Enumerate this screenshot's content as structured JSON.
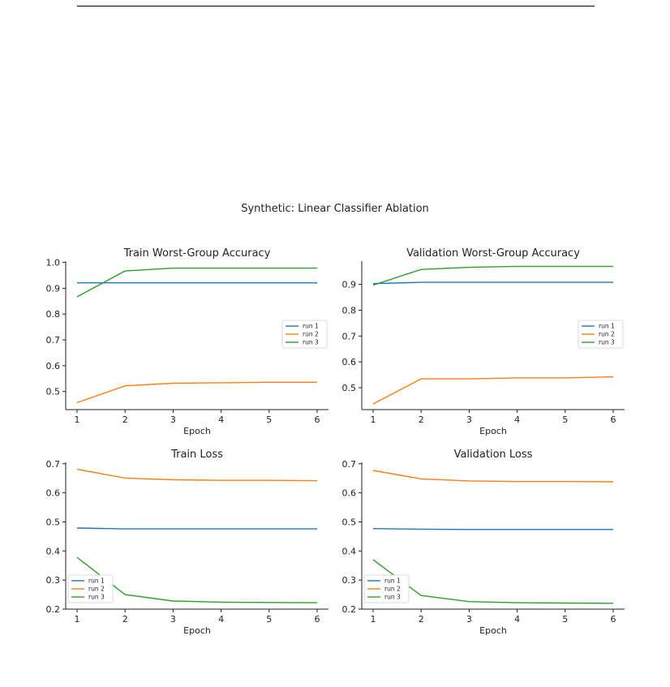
{
  "figure": {
    "title": "Synthetic: Linear Classifier Ablation"
  },
  "chart_data": [
    {
      "type": "line",
      "title": "Train Worst-Group Accuracy",
      "xlabel": "Epoch",
      "ylabel": "",
      "x": [
        1,
        2,
        3,
        4,
        5,
        6
      ],
      "xticks": [
        1,
        2,
        3,
        4,
        5,
        6
      ],
      "yticks": [
        0.5,
        0.6,
        0.7,
        0.8,
        0.9,
        1.0
      ],
      "ytick_labels": [
        "0.5",
        "0.6",
        "0.7",
        "0.8",
        "0.9",
        "1.0"
      ],
      "ylim": [
        0.43,
        1.005
      ],
      "legend": "center-right",
      "grid": false,
      "series": [
        {
          "name": "run 1",
          "color": "#1f77b4",
          "values": [
            0.921,
            0.921,
            0.921,
            0.921,
            0.921,
            0.921
          ]
        },
        {
          "name": "run 2",
          "color": "#ff7f0e",
          "values": [
            0.457,
            0.522,
            0.532,
            0.534,
            0.536,
            0.536
          ]
        },
        {
          "name": "run 3",
          "color": "#2ca02c",
          "values": [
            0.867,
            0.967,
            0.978,
            0.978,
            0.978,
            0.978
          ]
        }
      ]
    },
    {
      "type": "line",
      "title": "Validation Worst-Group Accuracy",
      "xlabel": "Epoch",
      "ylabel": "",
      "x": [
        1,
        2,
        3,
        4,
        5,
        6
      ],
      "xticks": [
        1,
        2,
        3,
        4,
        5,
        6
      ],
      "yticks": [
        0.5,
        0.6,
        0.7,
        0.8,
        0.9
      ],
      "ytick_labels": [
        "0.5",
        "0.6",
        "0.7",
        "0.8",
        "0.9"
      ],
      "ylim": [
        0.415,
        0.99
      ],
      "legend": "center-right",
      "grid": false,
      "series": [
        {
          "name": "run 1",
          "color": "#1f77b4",
          "values": [
            0.903,
            0.908,
            0.908,
            0.908,
            0.908,
            0.908
          ]
        },
        {
          "name": "run 2",
          "color": "#ff7f0e",
          "values": [
            0.437,
            0.534,
            0.534,
            0.538,
            0.538,
            0.542
          ]
        },
        {
          "name": "run 3",
          "color": "#2ca02c",
          "values": [
            0.897,
            0.958,
            0.966,
            0.97,
            0.97,
            0.97
          ]
        }
      ]
    },
    {
      "type": "line",
      "title": "Train Loss",
      "xlabel": "Epoch",
      "ylabel": "",
      "x": [
        1,
        2,
        3,
        4,
        5,
        6
      ],
      "xticks": [
        1,
        2,
        3,
        4,
        5,
        6
      ],
      "yticks": [
        0.2,
        0.3,
        0.4,
        0.5,
        0.6,
        0.7
      ],
      "ytick_labels": [
        "0.2",
        "0.3",
        "0.4",
        "0.5",
        "0.6",
        "0.7"
      ],
      "ylim": [
        0.2,
        0.705
      ],
      "legend": "lower-left",
      "grid": false,
      "series": [
        {
          "name": "run 1",
          "color": "#1f77b4",
          "values": [
            0.479,
            0.476,
            0.476,
            0.476,
            0.476,
            0.476
          ]
        },
        {
          "name": "run 2",
          "color": "#ff7f0e",
          "values": [
            0.681,
            0.651,
            0.645,
            0.643,
            0.643,
            0.642
          ]
        },
        {
          "name": "run 3",
          "color": "#2ca02c",
          "values": [
            0.378,
            0.25,
            0.228,
            0.224,
            0.223,
            0.222
          ]
        }
      ]
    },
    {
      "type": "line",
      "title": "Validation Loss",
      "xlabel": "Epoch",
      "ylabel": "",
      "x": [
        1,
        2,
        3,
        4,
        5,
        6
      ],
      "xticks": [
        1,
        2,
        3,
        4,
        5,
        6
      ],
      "yticks": [
        0.2,
        0.3,
        0.4,
        0.5,
        0.6,
        0.7
      ],
      "ytick_labels": [
        "0.2",
        "0.3",
        "0.4",
        "0.5",
        "0.6",
        "0.7"
      ],
      "ylim": [
        0.2,
        0.705
      ],
      "legend": "lower-left",
      "grid": false,
      "series": [
        {
          "name": "run 1",
          "color": "#1f77b4",
          "values": [
            0.477,
            0.475,
            0.474,
            0.474,
            0.474,
            0.474
          ]
        },
        {
          "name": "run 2",
          "color": "#ff7f0e",
          "values": [
            0.677,
            0.648,
            0.641,
            0.639,
            0.639,
            0.638
          ]
        },
        {
          "name": "run 3",
          "color": "#2ca02c",
          "values": [
            0.37,
            0.247,
            0.226,
            0.222,
            0.221,
            0.22
          ]
        }
      ]
    }
  ]
}
